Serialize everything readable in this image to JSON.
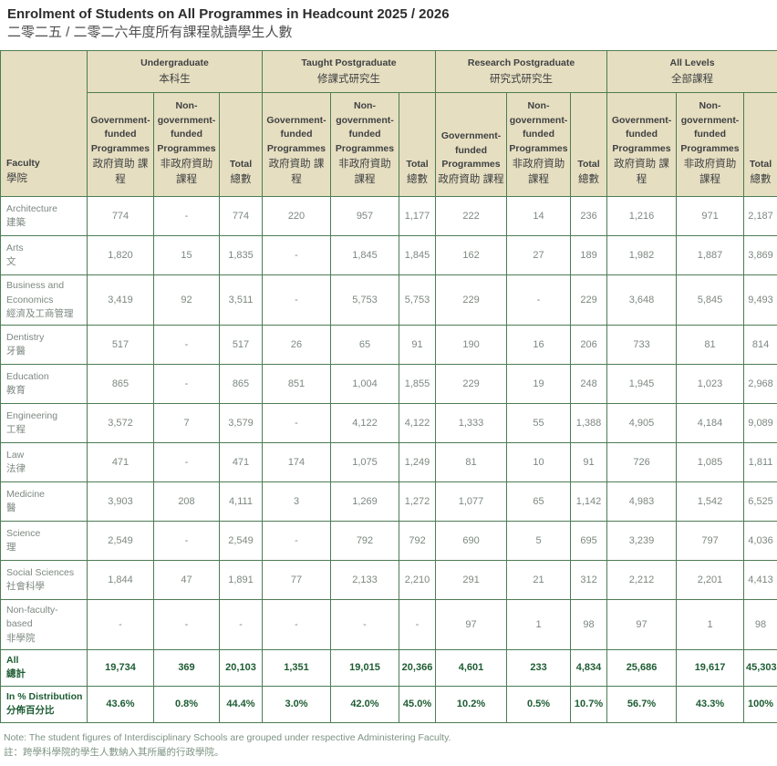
{
  "page": {
    "title": "Enrolment of Students on All Programmes in Headcount 2025 / 2026",
    "subtitle_zh": "二零二五 / 二零二六年度所有課程就讀學生人數",
    "note_en": "Note: The student figures of Interdisciplinary Schools are grouped under respective Administering Faculty.",
    "note_zh": "註：跨學科學院的學生人數納入其所屬的行政學院。"
  },
  "colors": {
    "border_green": "#4d7c53",
    "header_beige": "#e6dec0",
    "summary_green": "#1d5c33",
    "body_text_gray": "#7c8880"
  },
  "table": {
    "faculty_header": {
      "en": "Faculty",
      "zh": "學院"
    },
    "groups": [
      {
        "id": "undergraduate",
        "en": "Undergraduate",
        "zh": "本科生"
      },
      {
        "id": "taught-postgraduate",
        "en": "Taught Postgraduate",
        "zh": "修課式研究生"
      },
      {
        "id": "research-postgraduate",
        "en": "Research Postgraduate",
        "zh": "研究式研究生"
      },
      {
        "id": "all-levels",
        "en": "All Levels",
        "zh": "全部課程"
      }
    ],
    "subheaders": {
      "gov": {
        "en": "Government-funded Programmes",
        "zh": "政府資助 課程"
      },
      "nongov": {
        "en": "Non-government-funded Programmes",
        "zh": "非政府資助 課程"
      },
      "total": {
        "en": "Total",
        "zh": "總數"
      }
    },
    "rows": [
      {
        "en": "Architecture",
        "zh": "建築",
        "values": [
          "774",
          "-",
          "774",
          "220",
          "957",
          "1,177",
          "222",
          "14",
          "236",
          "1,216",
          "971",
          "2,187"
        ]
      },
      {
        "en": "Arts",
        "zh": "文",
        "values": [
          "1,820",
          "15",
          "1,835",
          "-",
          "1,845",
          "1,845",
          "162",
          "27",
          "189",
          "1,982",
          "1,887",
          "3,869"
        ]
      },
      {
        "en": "Business and Economics",
        "zh": "經濟及工商管理",
        "values": [
          "3,419",
          "92",
          "3,511",
          "-",
          "5,753",
          "5,753",
          "229",
          "-",
          "229",
          "3,648",
          "5,845",
          "9,493"
        ]
      },
      {
        "en": "Dentistry",
        "zh": "牙醫",
        "values": [
          "517",
          "-",
          "517",
          "26",
          "65",
          "91",
          "190",
          "16",
          "206",
          "733",
          "81",
          "814"
        ]
      },
      {
        "en": "Education",
        "zh": "教育",
        "values": [
          "865",
          "-",
          "865",
          "851",
          "1,004",
          "1,855",
          "229",
          "19",
          "248",
          "1,945",
          "1,023",
          "2,968"
        ]
      },
      {
        "en": "Engineering",
        "zh": "工程",
        "values": [
          "3,572",
          "7",
          "3,579",
          "-",
          "4,122",
          "4,122",
          "1,333",
          "55",
          "1,388",
          "4,905",
          "4,184",
          "9,089"
        ]
      },
      {
        "en": "Law",
        "zh": "法律",
        "values": [
          "471",
          "-",
          "471",
          "174",
          "1,075",
          "1,249",
          "81",
          "10",
          "91",
          "726",
          "1,085",
          "1,811"
        ]
      },
      {
        "en": "Medicine",
        "zh": "醫",
        "values": [
          "3,903",
          "208",
          "4,111",
          "3",
          "1,269",
          "1,272",
          "1,077",
          "65",
          "1,142",
          "4,983",
          "1,542",
          "6,525"
        ]
      },
      {
        "en": "Science",
        "zh": "理",
        "values": [
          "2,549",
          "-",
          "2,549",
          "-",
          "792",
          "792",
          "690",
          "5",
          "695",
          "3,239",
          "797",
          "4,036"
        ]
      },
      {
        "en": "Social Sciences",
        "zh": "社會科學",
        "values": [
          "1,844",
          "47",
          "1,891",
          "77",
          "2,133",
          "2,210",
          "291",
          "21",
          "312",
          "2,212",
          "2,201",
          "4,413"
        ]
      },
      {
        "en": "Non-faculty-based",
        "zh": "非學院",
        "values": [
          "-",
          "-",
          "-",
          "-",
          "-",
          "-",
          "97",
          "1",
          "98",
          "97",
          "1",
          "98"
        ]
      }
    ],
    "summary_rows": [
      {
        "en": "All",
        "zh": "總計",
        "values": [
          "19,734",
          "369",
          "20,103",
          "1,351",
          "19,015",
          "20,366",
          "4,601",
          "233",
          "4,834",
          "25,686",
          "19,617",
          "45,303"
        ]
      },
      {
        "en": "In % Distribution",
        "zh": "分佈百分比",
        "values": [
          "43.6%",
          "0.8%",
          "44.4%",
          "3.0%",
          "42.0%",
          "45.0%",
          "10.2%",
          "0.5%",
          "10.7%",
          "56.7%",
          "43.3%",
          "100%"
        ]
      }
    ]
  }
}
